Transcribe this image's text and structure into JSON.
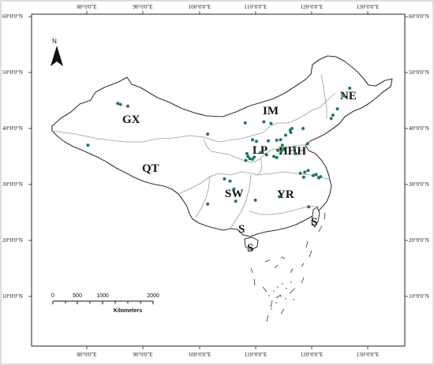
{
  "map": {
    "top_lon_labels": [
      "80°0'0\"E",
      "90°0'0\"E",
      "100°0'0\"E",
      "110°0'0\"E",
      "120°0'0\"E",
      "130°0'0\"E"
    ],
    "bottom_lon_labels": [
      "80°0'0\"E",
      "90°0'0\"E",
      "100°0'0\"E",
      "110°0'0\"E",
      "120°0'0\"E",
      "130°0'0\"E"
    ],
    "left_lat_labels": [
      "60°0'0\"N",
      "50°0'0\"N",
      "40°0'0\"N",
      "30°0'0\"N",
      "20°0'0\"N",
      "10°0'0\"N"
    ],
    "right_lat_labels": [
      "60°0'0\"N",
      "50°0'0\"N",
      "40°0'0\"N",
      "30°0'0\"N",
      "20°0'0\"N",
      "10°0'0\"N"
    ],
    "regions": [
      {
        "code": "GX"
      },
      {
        "code": "QT"
      },
      {
        "code": "IM"
      },
      {
        "code": "NE"
      },
      {
        "code": "LP"
      },
      {
        "code": "HHH"
      },
      {
        "code": "SW"
      },
      {
        "code": "YR"
      },
      {
        "code": "S"
      },
      {
        "code": "S"
      },
      {
        "code": "S"
      }
    ],
    "north_arrow_letter": "N",
    "scale_bar": {
      "ticks": [
        "0",
        "500",
        "1000",
        "2000"
      ],
      "unit": "Kilometers"
    },
    "point_color": "#1f7a4d",
    "sites": [
      {
        "lon": 85.5,
        "lat": 44.5
      },
      {
        "lon": 86.0,
        "lat": 44.3
      },
      {
        "lon": 87.3,
        "lat": 44.0
      },
      {
        "lon": 80.2,
        "lat": 37.0
      },
      {
        "lon": 101.5,
        "lat": 39.0
      },
      {
        "lon": 108.2,
        "lat": 41.0
      },
      {
        "lon": 111.5,
        "lat": 41.2
      },
      {
        "lon": 112.8,
        "lat": 40.9
      },
      {
        "lon": 109.5,
        "lat": 38.0
      },
      {
        "lon": 110.2,
        "lat": 37.7
      },
      {
        "lon": 112.3,
        "lat": 37.8
      },
      {
        "lon": 113.8,
        "lat": 37.9
      },
      {
        "lon": 108.5,
        "lat": 35.5
      },
      {
        "lon": 108.7,
        "lat": 35.0
      },
      {
        "lon": 109.0,
        "lat": 34.6
      },
      {
        "lon": 109.5,
        "lat": 34.5
      },
      {
        "lon": 108.3,
        "lat": 34.3
      },
      {
        "lon": 109.8,
        "lat": 34.9
      },
      {
        "lon": 111.0,
        "lat": 35.7
      },
      {
        "lon": 112.0,
        "lat": 35.3
      },
      {
        "lon": 113.3,
        "lat": 35.0
      },
      {
        "lon": 113.8,
        "lat": 34.8
      },
      {
        "lon": 114.6,
        "lat": 35.9
      },
      {
        "lon": 115.0,
        "lat": 36.3
      },
      {
        "lon": 114.8,
        "lat": 37.0
      },
      {
        "lon": 115.4,
        "lat": 38.8
      },
      {
        "lon": 116.2,
        "lat": 39.7
      },
      {
        "lon": 116.5,
        "lat": 40.0
      },
      {
        "lon": 116.3,
        "lat": 39.3
      },
      {
        "lon": 114.5,
        "lat": 38.0
      },
      {
        "lon": 114.0,
        "lat": 36.1
      },
      {
        "lon": 116.9,
        "lat": 36.6
      },
      {
        "lon": 117.2,
        "lat": 35.5
      },
      {
        "lon": 118.5,
        "lat": 40.0
      },
      {
        "lon": 119.3,
        "lat": 37.3
      },
      {
        "lon": 123.5,
        "lat": 41.8
      },
      {
        "lon": 123.8,
        "lat": 42.4
      },
      {
        "lon": 124.6,
        "lat": 43.5
      },
      {
        "lon": 126.8,
        "lat": 47.2
      },
      {
        "lon": 125.8,
        "lat": 45.8
      },
      {
        "lon": 118.0,
        "lat": 32.0
      },
      {
        "lon": 118.8,
        "lat": 32.2
      },
      {
        "lon": 119.4,
        "lat": 32.5
      },
      {
        "lon": 120.3,
        "lat": 31.6
      },
      {
        "lon": 120.8,
        "lat": 31.8
      },
      {
        "lon": 121.3,
        "lat": 31.2
      },
      {
        "lon": 121.6,
        "lat": 31.4
      },
      {
        "lon": 118.6,
        "lat": 31.3
      },
      {
        "lon": 104.5,
        "lat": 31.0
      },
      {
        "lon": 105.5,
        "lat": 30.6
      },
      {
        "lon": 106.2,
        "lat": 29.2
      },
      {
        "lon": 106.5,
        "lat": 27.0
      },
      {
        "lon": 101.5,
        "lat": 26.5
      },
      {
        "lon": 110.0,
        "lat": 27.2
      },
      {
        "lon": 114.3,
        "lat": 27.8
      },
      {
        "lon": 119.5,
        "lat": 26.0
      }
    ]
  }
}
